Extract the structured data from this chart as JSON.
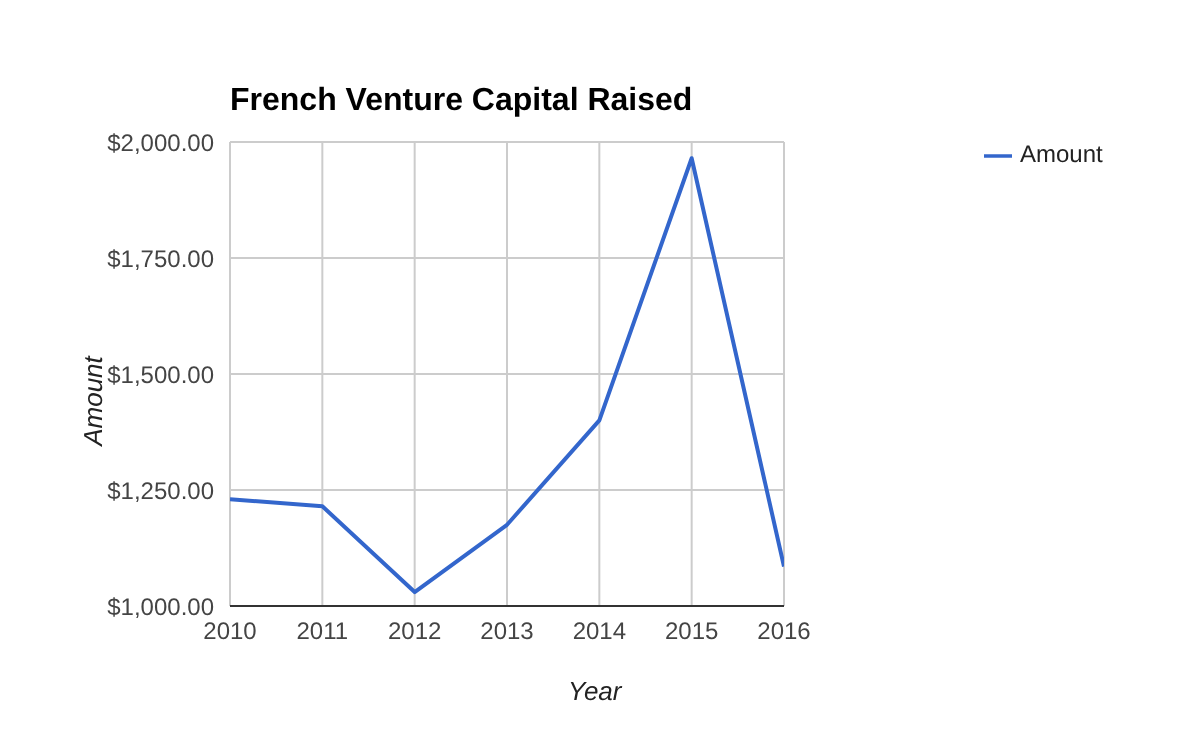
{
  "chart_data": {
    "type": "line",
    "title": "French Venture Capital Raised",
    "xlabel": "Year",
    "ylabel": "Amount",
    "x": [
      2010,
      2011,
      2012,
      2013,
      2014,
      2015,
      2016
    ],
    "series": [
      {
        "name": "Amount",
        "color": "#3366cc",
        "values": [
          1230,
          1215,
          1030,
          1175,
          1400,
          1965,
          1085
        ]
      }
    ],
    "xlim": [
      2010,
      2016
    ],
    "xticks": [
      2010,
      2011,
      2012,
      2013,
      2014,
      2015,
      2016
    ],
    "ylim": [
      1000,
      2000
    ],
    "yticks": [
      {
        "value": 1000,
        "label": "$1,000.00"
      },
      {
        "value": 1250,
        "label": "$1,250.00"
      },
      {
        "value": 1500,
        "label": "$1,500.00"
      },
      {
        "value": 1750,
        "label": "$1,750.00"
      },
      {
        "value": 2000,
        "label": "$2,000.00"
      }
    ],
    "grid": true,
    "legend": "top right",
    "marker": "none",
    "line_style": "solid"
  }
}
